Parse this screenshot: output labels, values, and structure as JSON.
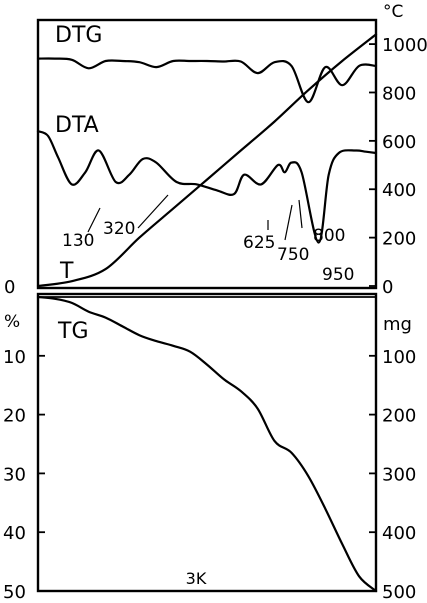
{
  "chart_data": [
    {
      "type": "line",
      "panel": "upper",
      "right_axis": {
        "unit": "°C",
        "ylim": [
          0,
          1050
        ],
        "ticks": [
          0,
          200,
          400,
          600,
          800,
          1000
        ]
      },
      "left_axis": {
        "ticks": [
          0
        ]
      },
      "grid": false,
      "series": [
        {
          "name": "DTG",
          "x": [
            0,
            5,
            10,
            15,
            20,
            25,
            30,
            35,
            40,
            45,
            50,
            55,
            60,
            65,
            70,
            75,
            80,
            85,
            90,
            95,
            100
          ],
          "y": [
            940,
            940,
            935,
            900,
            930,
            930,
            925,
            905,
            930,
            930,
            930,
            928,
            928,
            880,
            925,
            910,
            760,
            905,
            830,
            910,
            910
          ]
        },
        {
          "name": "DTA",
          "peak_labels": [
            "130",
            "320",
            "625",
            "750",
            "800",
            "950"
          ],
          "x": [
            0,
            3,
            6,
            10,
            14,
            18,
            23,
            27,
            31,
            35,
            41,
            47,
            53,
            58,
            61,
            66,
            71,
            73,
            75,
            78,
            83,
            86,
            89,
            94,
            97,
            100
          ],
          "y": [
            640,
            620,
            530,
            420,
            470,
            560,
            430,
            460,
            525,
            510,
            430,
            420,
            395,
            380,
            460,
            420,
            500,
            470,
            510,
            470,
            180,
            460,
            550,
            560,
            555,
            550
          ]
        },
        {
          "name": "T",
          "x": [
            0,
            10,
            20,
            30,
            40,
            50,
            60,
            70,
            80,
            90,
            100
          ],
          "y": [
            0,
            20,
            70,
            200,
            320,
            440,
            560,
            680,
            810,
            930,
            1040
          ]
        }
      ]
    },
    {
      "type": "line",
      "panel": "lower",
      "left_axis": {
        "unit": "%",
        "ylim": [
          0,
          50
        ],
        "ticks": [
          0,
          10,
          20,
          30,
          40,
          50
        ],
        "reversed": true
      },
      "right_axis": {
        "unit": "mg",
        "ylim": [
          0,
          500
        ],
        "ticks": [
          100,
          200,
          300,
          400,
          500
        ],
        "reversed": true
      },
      "xlabel": "3K",
      "grid": false,
      "series": [
        {
          "name": "TG",
          "x": [
            0,
            5,
            10,
            15,
            20,
            25,
            30,
            35,
            40,
            45,
            50,
            55,
            60,
            65,
            70,
            75,
            80,
            85,
            90,
            95,
            100
          ],
          "y": [
            0,
            0.3,
            1,
            2.5,
            3.5,
            5,
            6.5,
            7.5,
            8.3,
            9.3,
            11.5,
            14,
            16,
            19,
            24.5,
            26.5,
            30.5,
            36,
            42,
            47.5,
            50
          ]
        }
      ]
    }
  ]
}
